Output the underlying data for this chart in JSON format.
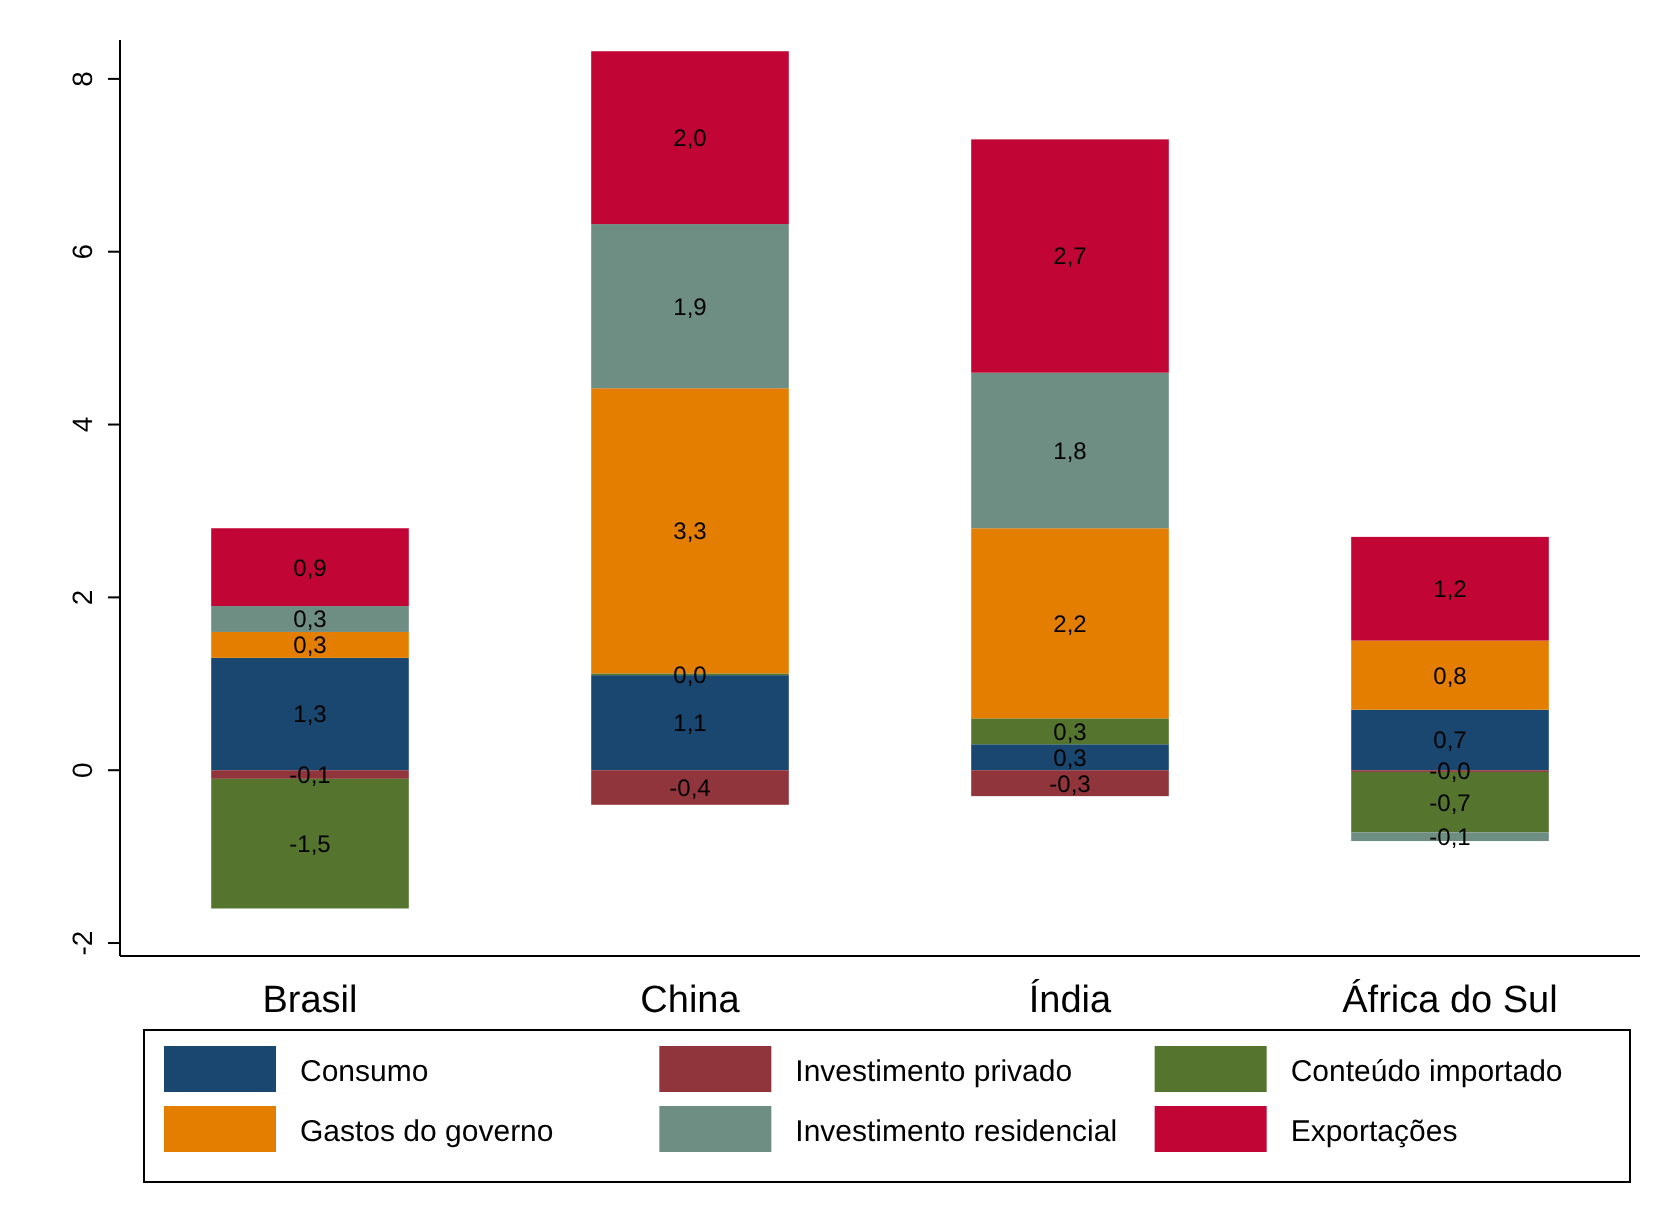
{
  "chart_data": {
    "type": "bar",
    "stacked": true,
    "categories": [
      "Brasil",
      "China",
      "Índia",
      "África do Sul"
    ],
    "series": [
      {
        "name": "Consumo",
        "color": "#1a476f",
        "values": [
          1.3,
          1.1,
          0.3,
          0.7
        ],
        "value_labels": [
          "1,3",
          "1,1",
          "0,3",
          "0,7"
        ]
      },
      {
        "name": "Investimento privado",
        "color": "#90353b",
        "values": [
          -0.1,
          -0.4,
          -0.3,
          -0.02
        ],
        "value_labels": [
          "-0,1",
          "-0,4",
          "-0,3",
          "-0,0"
        ]
      },
      {
        "name": "Conteúdo importado",
        "color": "#55752f",
        "values": [
          -1.5,
          0.02,
          0.3,
          -0.7
        ],
        "value_labels": [
          "-1,5",
          "0,0",
          "0,3",
          "-0,7"
        ]
      },
      {
        "name": "Gastos do governo",
        "color": "#e37e00",
        "values": [
          0.3,
          3.3,
          2.2,
          0.8
        ],
        "value_labels": [
          "0,3",
          "3,3",
          "2,2",
          "0,8"
        ]
      },
      {
        "name": "Investimento residencial",
        "color": "#6e8e84",
        "values": [
          0.3,
          1.9,
          1.8,
          -0.1
        ],
        "value_labels": [
          "0,3",
          "1,9",
          "1,8",
          "-0,1"
        ]
      },
      {
        "name": "Exportações",
        "color": "#c10534",
        "values": [
          0.9,
          2.0,
          2.7,
          1.2
        ],
        "value_labels": [
          "0,9",
          "2,0",
          "2,7",
          "1,2"
        ]
      }
    ],
    "ylim": [
      -2.15,
      8.45
    ],
    "yticks": [
      -2,
      0,
      2,
      4,
      6,
      8
    ],
    "grid": false,
    "legend": "bottom"
  }
}
